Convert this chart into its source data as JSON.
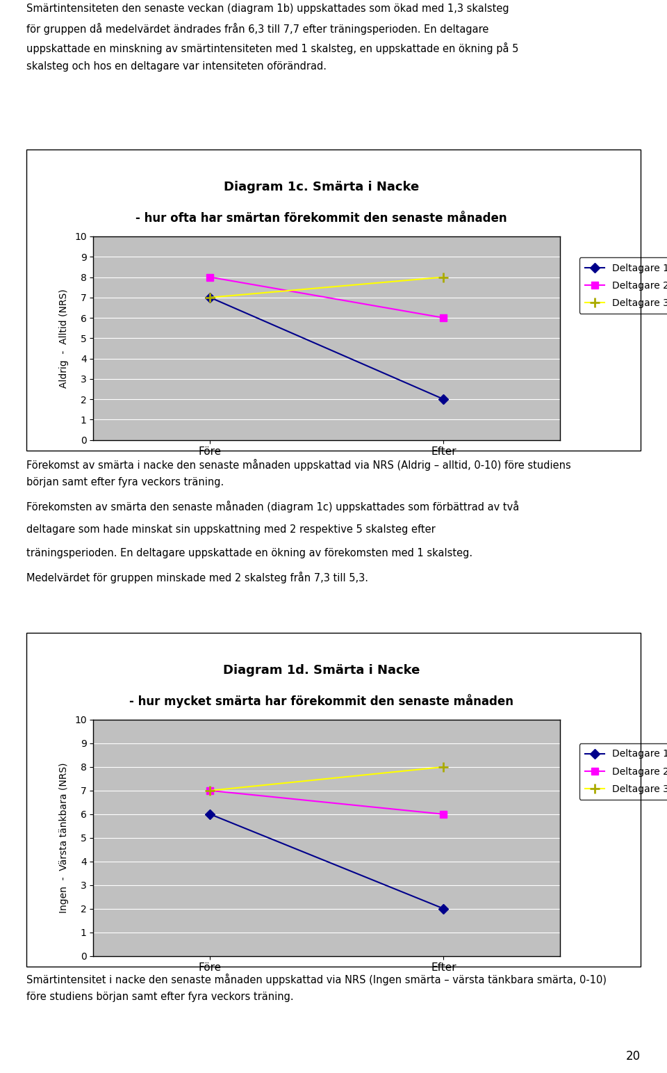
{
  "page_background": "#ffffff",
  "body_text_color": "#000000",
  "body_font_size": 10.5,
  "intro_text": "Smärtintensiteten den senaste veckan (diagram 1b) uppskattades som ökad med 1,3 skalsteg\nför gruppen då medelvärdet ändrades från 6,3 till 7,7 efter träningsperioden. En deltagare\nuppskattade en minskning av smärtintensiteten med 1 skalsteg, en uppskattade en ökning på 5\nskalsteg och hos en deltagare var intensiteten oförändrad.",
  "chart1_title_line1": "Diagram 1c. Smärta i Nacke",
  "chart1_title_line2": "- hur ofta har smärtan förekommit den senaste månaden",
  "chart1_ylabel": "Aldrig  -  Alltid (NRS)",
  "chart1_xlabel_fore": "Före",
  "chart1_xlabel_efter": "Efter",
  "chart1_ylim": [
    0,
    10
  ],
  "chart1_yticks": [
    0,
    1,
    2,
    3,
    4,
    5,
    6,
    7,
    8,
    9,
    10
  ],
  "chart1_d1_fore": 7,
  "chart1_d1_efter": 2,
  "chart1_d2_fore": 8,
  "chart1_d2_efter": 6,
  "chart1_d3_fore": 7,
  "chart1_d3_efter": 8,
  "mid_text_line1": "Förekomst av smärta i nacke den senaste månaden uppskattad via NRS (Aldrig – alltid, 0-10) före studiens",
  "mid_text_line2": "början samt efter fyra veckors träning.",
  "intertext1": "Förekomsten av smärta den senaste månaden (diagram 1c) uppskattades som förbättrad av två\ndeltagare som hade minskat sin uppskattning med 2 respektive 5 skalsteg efter\nträningsperioden. En deltagare uppskattade en ökning av förekomsten med 1 skalsteg.\nMedelvärdet för gruppen minskade med 2 skalsteg från 7,3 till 5,3.",
  "chart2_title_line1": "Diagram 1d. Smärta i Nacke",
  "chart2_title_line2": "- hur mycket smärta har förekommit den senaste månaden",
  "chart2_ylabel": "Ingen  -  Värsta tänkbara (NRS)",
  "chart2_xlabel_fore": "Före",
  "chart2_xlabel_efter": "Efter",
  "chart2_ylim": [
    0,
    10
  ],
  "chart2_yticks": [
    0,
    1,
    2,
    3,
    4,
    5,
    6,
    7,
    8,
    9,
    10
  ],
  "chart2_d1_fore": 6,
  "chart2_d1_efter": 2,
  "chart2_d2_fore": 7,
  "chart2_d2_efter": 6,
  "chart2_d3_fore": 7,
  "chart2_d3_efter": 8,
  "bottom_text_line1": "Smärtintensitet i nacke den senaste månaden uppskattad via NRS (Ingen smärta – värsta tänkbara smärta, 0-10)",
  "bottom_text_line2": "före studiens början samt efter fyra veckors träning.",
  "page_number": "20",
  "color_d1": "#00008B",
  "color_d2": "#FF00FF",
  "color_d3": "#FFFF00",
  "marker_d1": "D",
  "marker_d2": "s",
  "marker_d3": "+",
  "chart_bg": "#C0C0C0",
  "chart_border": "#000000",
  "legend_labels": [
    "Deltagare 1",
    "Deltagare 2",
    "Deltagare 3"
  ]
}
